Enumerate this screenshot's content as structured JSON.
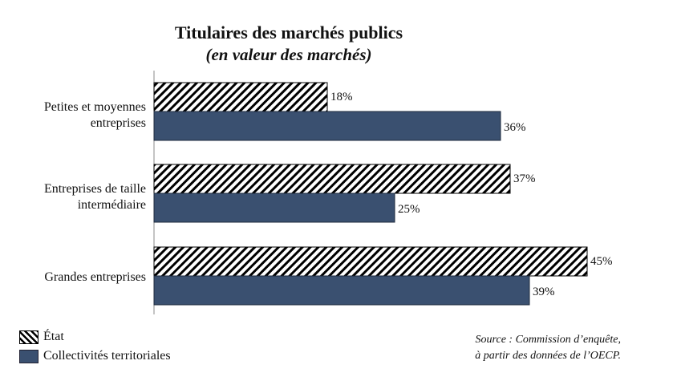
{
  "chart_data": {
    "type": "bar",
    "orientation": "horizontal",
    "title": "Titulaires des marchés publics",
    "subtitle": "(en valeur des marchés)",
    "categories": [
      "Petites et moyennes entreprises",
      "Entreprises de taille intermédiaire",
      "Grandes entreprises"
    ],
    "series": [
      {
        "name": "État",
        "values": [
          18,
          37,
          45
        ],
        "labels": [
          "18%",
          "37%",
          "45%"
        ],
        "pattern": "hatched"
      },
      {
        "name": "Collectivités territoriales",
        "values": [
          36,
          25,
          39
        ],
        "labels": [
          "36%",
          "25%",
          "39%"
        ],
        "color": "#3a5070"
      }
    ],
    "xlim": [
      0,
      50
    ],
    "unit": "%",
    "grid": false,
    "legend": "bottom-left",
    "source": [
      "Source : Commission d’enquête,",
      "à partir des données de l’OECP."
    ]
  }
}
